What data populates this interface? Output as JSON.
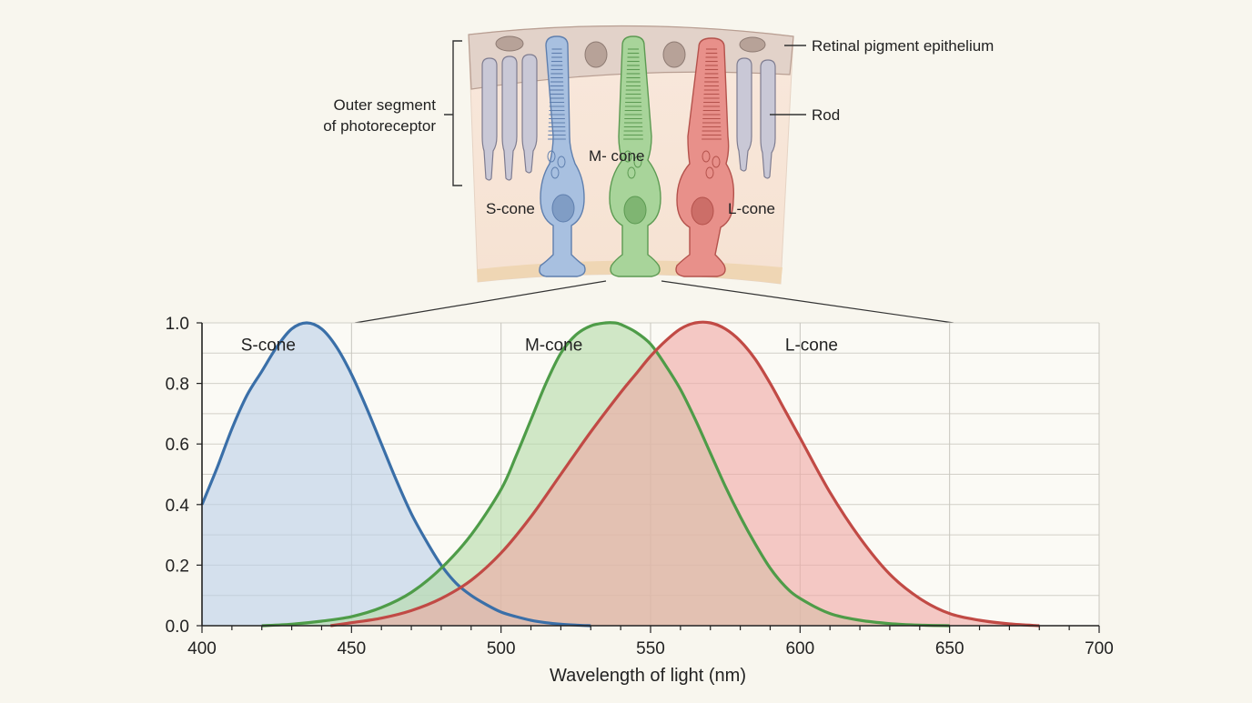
{
  "anatomy": {
    "labels": {
      "rpe": "Retinal pigment epithelium",
      "rod": "Rod",
      "outer_segment_line1": "Outer segment",
      "outer_segment_line2": "of photoreceptor",
      "s_cone": "S-cone",
      "m_cone": "M- cone",
      "l_cone": "L-cone"
    },
    "colors": {
      "s_cone": "#a8c0e0",
      "m_cone": "#a8d49a",
      "l_cone": "#e8908a",
      "rod": "#c9c8d6",
      "rpe": "#e2d2c9"
    }
  },
  "chart_data": {
    "type": "area",
    "title": "",
    "xlabel": "Wavelength of light (nm)",
    "ylabel": "",
    "xlim": [
      400,
      700
    ],
    "ylim": [
      0,
      1.0
    ],
    "x_ticks": [
      400,
      450,
      500,
      550,
      600,
      650,
      700
    ],
    "x_tick_labels": [
      "400",
      "450",
      "500",
      "550",
      "600",
      "650",
      "700"
    ],
    "y_ticks": [
      0,
      0.2,
      0.4,
      0.6,
      0.8,
      1.0
    ],
    "y_tick_labels": [
      "0.0",
      "0.2",
      "0.4",
      "0.6",
      "0.8",
      "1.0"
    ],
    "grid": true,
    "series": [
      {
        "name": "S-cone",
        "color": "#3a6fa8",
        "fill": "#bcd0e8",
        "x": [
          400,
          405,
          410,
          415,
          420,
          425,
          430,
          435,
          440,
          445,
          450,
          455,
          460,
          465,
          470,
          475,
          480,
          485,
          490,
          495,
          500,
          505,
          510,
          515,
          520,
          525,
          530
        ],
        "y": [
          0.4,
          0.52,
          0.65,
          0.76,
          0.84,
          0.92,
          0.98,
          1.0,
          0.98,
          0.92,
          0.83,
          0.72,
          0.6,
          0.48,
          0.37,
          0.28,
          0.2,
          0.14,
          0.1,
          0.07,
          0.045,
          0.03,
          0.018,
          0.01,
          0.005,
          0.002,
          0.0
        ]
      },
      {
        "name": "M-cone",
        "color": "#4e9c48",
        "fill": "#b5dcaa",
        "x": [
          420,
          430,
          440,
          450,
          460,
          470,
          480,
          490,
          500,
          505,
          510,
          515,
          520,
          525,
          530,
          535,
          538,
          540,
          545,
          550,
          555,
          560,
          565,
          570,
          575,
          580,
          585,
          590,
          595,
          600,
          610,
          620,
          630,
          640,
          650
        ],
        "y": [
          0.0,
          0.005,
          0.015,
          0.03,
          0.06,
          0.11,
          0.19,
          0.3,
          0.45,
          0.56,
          0.68,
          0.8,
          0.9,
          0.96,
          0.99,
          1.0,
          1.0,
          0.995,
          0.97,
          0.93,
          0.86,
          0.78,
          0.68,
          0.57,
          0.46,
          0.36,
          0.27,
          0.19,
          0.13,
          0.09,
          0.04,
          0.018,
          0.007,
          0.002,
          0.0
        ]
      },
      {
        "name": "L-cone",
        "color": "#c14a45",
        "fill": "#efaaa6",
        "x": [
          443,
          450,
          460,
          470,
          480,
          490,
          500,
          510,
          520,
          530,
          540,
          545,
          550,
          555,
          560,
          565,
          570,
          575,
          580,
          585,
          590,
          595,
          600,
          610,
          620,
          630,
          640,
          650,
          660,
          670,
          680
        ],
        "y": [
          0.0,
          0.01,
          0.025,
          0.05,
          0.09,
          0.15,
          0.24,
          0.36,
          0.5,
          0.64,
          0.77,
          0.83,
          0.89,
          0.94,
          0.98,
          1.0,
          1.0,
          0.98,
          0.94,
          0.88,
          0.8,
          0.71,
          0.62,
          0.44,
          0.29,
          0.17,
          0.09,
          0.04,
          0.018,
          0.006,
          0.0
        ]
      }
    ],
    "annotations": [
      {
        "text": "S-cone",
        "x": 413,
        "y": 0.93
      },
      {
        "text": "M-cone",
        "x": 508,
        "y": 0.93
      },
      {
        "text": "L-cone",
        "x": 595,
        "y": 0.93
      }
    ]
  }
}
